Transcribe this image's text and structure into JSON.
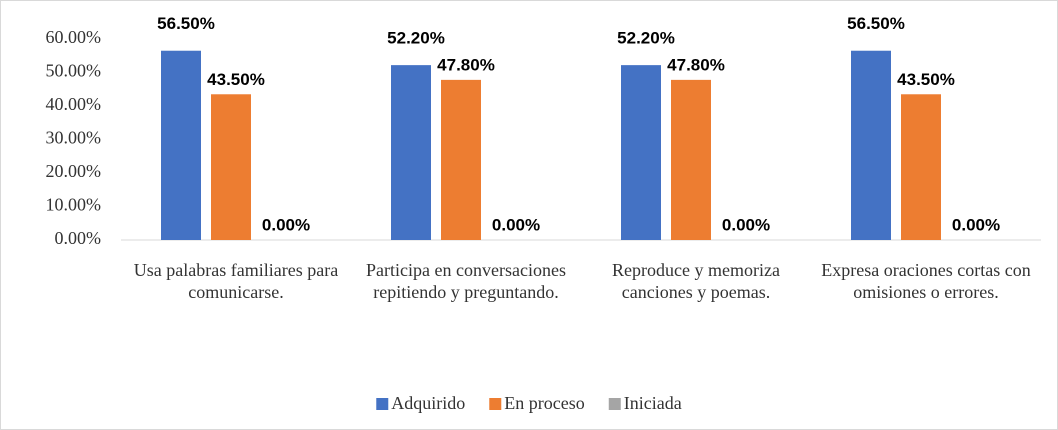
{
  "chart_data": {
    "type": "bar",
    "categories": [
      "Usa palabras familiares para comunicarse.",
      "Participa en conversaciones repitiendo y preguntando.",
      "Reproduce y memoriza canciones y poemas.",
      "Expresa oraciones cortas con omisiones o errores."
    ],
    "series": [
      {
        "name": "Adquirido",
        "color": "#4472c4",
        "values": [
          56.5,
          52.2,
          52.2,
          56.5
        ],
        "value_labels": [
          "56.50%",
          "52.20%",
          "52.20%",
          "56.50%"
        ]
      },
      {
        "name": "En proceso",
        "color": "#ed7d31",
        "values": [
          43.5,
          47.8,
          47.8,
          43.5
        ],
        "value_labels": [
          "43.50%",
          "47.80%",
          "47.80%",
          "43.50%"
        ]
      },
      {
        "name": "Iniciada",
        "color": "#a5a5a5",
        "values": [
          0,
          0,
          0,
          0
        ],
        "value_labels": [
          "0.00%",
          "0.00%",
          "0.00%",
          "0.00%"
        ]
      }
    ],
    "ylim": [
      0,
      60
    ],
    "yticks": [
      {
        "value": 0,
        "label": "0.00%"
      },
      {
        "value": 10,
        "label": "10.00%"
      },
      {
        "value": 20,
        "label": "20.00%"
      },
      {
        "value": 30,
        "label": "30.00%"
      },
      {
        "value": 40,
        "label": "40.00%"
      },
      {
        "value": 50,
        "label": "50.00%"
      },
      {
        "value": 60,
        "label": "60.00%"
      }
    ],
    "grid": false,
    "legend": "bottom"
  }
}
